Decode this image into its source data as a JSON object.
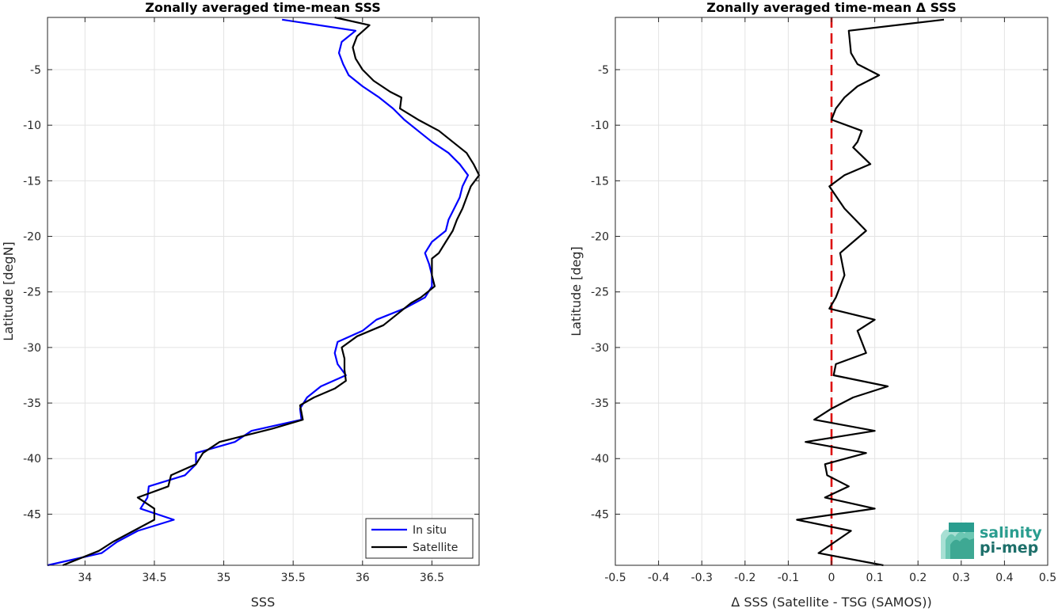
{
  "colors": {
    "insitu": "#0000ff",
    "satellite": "#000000",
    "zero_line": "#dd1111",
    "grid": "#e3e3e3",
    "axis": "#262626",
    "logo_primary": "#2a9d8f",
    "logo_secondary": "#1d6f6a"
  },
  "logo": {
    "line1": "salinity",
    "line2": "pi-mep"
  },
  "chart_data": [
    {
      "type": "line",
      "title": "Zonally averaged time-mean SSS",
      "xlabel": "SSS",
      "ylabel": "Latitude [degN]",
      "xlim": [
        33.73,
        36.84
      ],
      "ylim": [
        -49.6,
        -0.3
      ],
      "x_ticks": [
        34,
        34.5,
        35,
        35.5,
        36,
        36.5
      ],
      "x_tick_labels": [
        "34",
        "34.5",
        "35",
        "35.5",
        "36",
        "36.5"
      ],
      "y_ticks": [
        -5,
        -10,
        -15,
        -20,
        -25,
        -30,
        -35,
        -40,
        -45
      ],
      "y_tick_labels": [
        "-5",
        "-10",
        "-15",
        "-20",
        "-25",
        "-30",
        "-35",
        "-40",
        "-45"
      ],
      "grid": true,
      "legend": "bottom-right",
      "series": [
        {
          "name": "In situ",
          "color_key": "insitu",
          "points": [
            [
              35.42,
              -0.5
            ],
            [
              35.95,
              -1.5
            ],
            [
              35.85,
              -2.5
            ],
            [
              35.83,
              -3.5
            ],
            [
              35.86,
              -4.5
            ],
            [
              35.9,
              -5.5
            ],
            [
              36.0,
              -6.5
            ],
            [
              36.12,
              -7.5
            ],
            [
              36.22,
              -8.5
            ],
            [
              36.3,
              -9.5
            ],
            [
              36.4,
              -10.5
            ],
            [
              36.5,
              -11.5
            ],
            [
              36.62,
              -12.5
            ],
            [
              36.7,
              -13.5
            ],
            [
              36.76,
              -14.5
            ],
            [
              36.72,
              -15.5
            ],
            [
              36.7,
              -16.5
            ],
            [
              36.66,
              -17.5
            ],
            [
              36.62,
              -18.5
            ],
            [
              36.6,
              -19.5
            ],
            [
              36.5,
              -20.5
            ],
            [
              36.45,
              -21.5
            ],
            [
              36.48,
              -22.5
            ],
            [
              36.5,
              -23.5
            ],
            [
              36.5,
              -24.5
            ],
            [
              36.45,
              -25.5
            ],
            [
              36.3,
              -26.5
            ],
            [
              36.1,
              -27.5
            ],
            [
              36.0,
              -28.5
            ],
            [
              35.82,
              -29.5
            ],
            [
              35.8,
              -30.5
            ],
            [
              35.82,
              -31.5
            ],
            [
              35.88,
              -32.5
            ],
            [
              35.7,
              -33.5
            ],
            [
              35.6,
              -34.5
            ],
            [
              35.55,
              -35.5
            ],
            [
              35.56,
              -36.5
            ],
            [
              35.2,
              -37.5
            ],
            [
              35.08,
              -38.5
            ],
            [
              34.8,
              -39.5
            ],
            [
              34.8,
              -40.5
            ],
            [
              34.72,
              -41.5
            ],
            [
              34.46,
              -42.5
            ],
            [
              34.45,
              -43.5
            ],
            [
              34.4,
              -44.5
            ],
            [
              34.64,
              -45.5
            ],
            [
              34.38,
              -46.5
            ],
            [
              34.23,
              -47.5
            ],
            [
              34.12,
              -48.5
            ],
            [
              33.73,
              -49.6
            ]
          ]
        },
        {
          "name": "Satellite",
          "color_key": "satellite",
          "points": [
            [
              35.8,
              -0.3
            ],
            [
              36.05,
              -1.0
            ],
            [
              35.96,
              -2.0
            ],
            [
              35.93,
              -3.0
            ],
            [
              35.95,
              -4.0
            ],
            [
              36.0,
              -5.0
            ],
            [
              36.08,
              -6.0
            ],
            [
              36.2,
              -7.0
            ],
            [
              36.28,
              -7.5
            ],
            [
              36.27,
              -8.5
            ],
            [
              36.4,
              -9.5
            ],
            [
              36.55,
              -10.5
            ],
            [
              36.65,
              -11.5
            ],
            [
              36.75,
              -12.5
            ],
            [
              36.8,
              -13.5
            ],
            [
              36.84,
              -14.5
            ],
            [
              36.78,
              -15.5
            ],
            [
              36.75,
              -16.5
            ],
            [
              36.72,
              -17.5
            ],
            [
              36.68,
              -18.5
            ],
            [
              36.65,
              -19.5
            ],
            [
              36.6,
              -20.5
            ],
            [
              36.55,
              -21.5
            ],
            [
              36.5,
              -22.0
            ],
            [
              36.5,
              -23.5
            ],
            [
              36.52,
              -24.5
            ],
            [
              36.42,
              -25.5
            ],
            [
              36.35,
              -26.0
            ],
            [
              36.25,
              -27.0
            ],
            [
              36.15,
              -28.0
            ],
            [
              35.96,
              -29.0
            ],
            [
              35.85,
              -30.0
            ],
            [
              35.87,
              -31.0
            ],
            [
              35.87,
              -32.0
            ],
            [
              35.88,
              -33.0
            ],
            [
              35.8,
              -33.7
            ],
            [
              35.65,
              -34.5
            ],
            [
              35.55,
              -35.2
            ],
            [
              35.57,
              -36.5
            ],
            [
              35.35,
              -37.3
            ],
            [
              34.97,
              -38.5
            ],
            [
              34.85,
              -39.5
            ],
            [
              34.8,
              -40.5
            ],
            [
              34.62,
              -41.5
            ],
            [
              34.6,
              -42.5
            ],
            [
              34.38,
              -43.5
            ],
            [
              34.5,
              -44.5
            ],
            [
              34.5,
              -45.5
            ],
            [
              34.35,
              -46.5
            ],
            [
              34.2,
              -47.5
            ],
            [
              34.1,
              -48.3
            ],
            [
              33.84,
              -49.6
            ]
          ]
        }
      ]
    },
    {
      "type": "line",
      "title": "Zonally averaged time-mean Δ SSS",
      "xlabel": "Δ SSS (Satellite - TSG (SAMOS))",
      "ylabel": "Latitude [deg]",
      "xlim": [
        -0.5,
        0.5
      ],
      "ylim": [
        -49.6,
        -0.3
      ],
      "x_ticks": [
        -0.5,
        -0.4,
        -0.3,
        -0.2,
        -0.1,
        0,
        0.1,
        0.2,
        0.3,
        0.4,
        0.5
      ],
      "x_tick_labels": [
        "-0.5",
        "-0.4",
        "-0.3",
        "-0.2",
        "-0.1",
        "0",
        "0.1",
        "0.2",
        "0.3",
        "0.4",
        "0.5"
      ],
      "y_ticks": [
        -5,
        -10,
        -15,
        -20,
        -25,
        -30,
        -35,
        -40,
        -45
      ],
      "y_tick_labels": [
        "-5",
        "-10",
        "-15",
        "-20",
        "-25",
        "-30",
        "-35",
        "-40",
        "-45"
      ],
      "grid": true,
      "reference_line": {
        "x": 0,
        "style": "dashed",
        "color_key": "zero_line"
      },
      "series": [
        {
          "color_key": "satellite",
          "points": [
            [
              0.26,
              -0.5
            ],
            [
              0.04,
              -1.5
            ],
            [
              0.045,
              -3.5
            ],
            [
              0.06,
              -4.5
            ],
            [
              0.11,
              -5.5
            ],
            [
              0.06,
              -6.5
            ],
            [
              0.03,
              -7.5
            ],
            [
              0.01,
              -8.5
            ],
            [
              0.0,
              -9.5
            ],
            [
              0.07,
              -10.5
            ],
            [
              0.06,
              -11.5
            ],
            [
              0.05,
              -12.0
            ],
            [
              0.09,
              -13.5
            ],
            [
              0.03,
              -14.5
            ],
            [
              -0.005,
              -15.5
            ],
            [
              0.03,
              -17.5
            ],
            [
              0.08,
              -19.5
            ],
            [
              0.05,
              -20.5
            ],
            [
              0.02,
              -21.5
            ],
            [
              0.03,
              -23.5
            ],
            [
              0.01,
              -25.5
            ],
            [
              -0.005,
              -26.5
            ],
            [
              0.1,
              -27.5
            ],
            [
              0.06,
              -28.5
            ],
            [
              0.08,
              -30.5
            ],
            [
              0.01,
              -31.5
            ],
            [
              0.005,
              -32.5
            ],
            [
              0.13,
              -33.5
            ],
            [
              0.05,
              -34.5
            ],
            [
              0.0,
              -35.5
            ],
            [
              -0.04,
              -36.5
            ],
            [
              0.1,
              -37.5
            ],
            [
              -0.06,
              -38.5
            ],
            [
              0.08,
              -39.5
            ],
            [
              -0.015,
              -40.5
            ],
            [
              -0.01,
              -41.5
            ],
            [
              0.04,
              -42.5
            ],
            [
              -0.015,
              -43.5
            ],
            [
              0.1,
              -44.5
            ],
            [
              -0.08,
              -45.5
            ],
            [
              0.045,
              -46.5
            ],
            [
              -0.03,
              -48.5
            ],
            [
              0.12,
              -49.6
            ]
          ]
        }
      ]
    }
  ]
}
